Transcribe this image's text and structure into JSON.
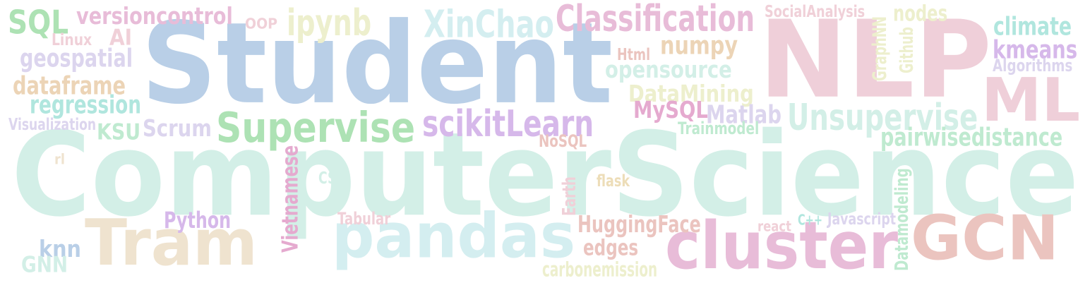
{
  "palette": {
    "blue": "#b9cfe7",
    "mint": "#d3efe7",
    "pink": "#efcfd9",
    "peach": "#efe3cf",
    "cyan": "#d4eef0",
    "orchid": "#e8bcd8",
    "salmon": "#ebc4bf",
    "green": "#ade2b4",
    "lilac": "#d6b8ea",
    "lightlilac": "#dcd5ee",
    "pinkish": "#e5aacf",
    "sand": "#ecd4b6",
    "lightyellow": "#edefcd",
    "teal": "#b0e6de",
    "lightpink": "#f0d0d8",
    "lightgreen": "#bfead0",
    "cyan2": "#b9e2e9",
    "tan": "#edddb8"
  },
  "words": [
    {
      "id": "computerscience",
      "text": "ComputerScience",
      "color": "mint"
    },
    {
      "id": "student",
      "text": "Student",
      "color": "blue"
    },
    {
      "id": "nlp",
      "text": "NLP",
      "color": "pink"
    },
    {
      "id": "tram",
      "text": "Tram",
      "color": "peach"
    },
    {
      "id": "pandas",
      "text": "pandas",
      "color": "cyan"
    },
    {
      "id": "cluster",
      "text": "cluster",
      "color": "orchid"
    },
    {
      "id": "gcn",
      "text": "GCN",
      "color": "salmon"
    },
    {
      "id": "ml",
      "text": "ML",
      "color": "pink"
    },
    {
      "id": "supervise",
      "text": "Supervise",
      "color": "green"
    },
    {
      "id": "unsupervise",
      "text": "Unsupervise",
      "color": "mint"
    },
    {
      "id": "scikitlearn",
      "text": "scikitLearn",
      "color": "lilac"
    },
    {
      "id": "classification",
      "text": "Classification",
      "color": "orchid"
    },
    {
      "id": "xinchao",
      "text": "XinChao",
      "color": "cyan"
    },
    {
      "id": "ipynb",
      "text": "ipynb",
      "color": "lightyellow"
    },
    {
      "id": "sql",
      "text": "SQL",
      "color": "green"
    },
    {
      "id": "versioncontrol",
      "text": "versioncontrol",
      "color": "orchid"
    },
    {
      "id": "geospatial",
      "text": "geospatial",
      "color": "lightlilac"
    },
    {
      "id": "dataframe",
      "text": "dataframe",
      "color": "sand"
    },
    {
      "id": "regression",
      "text": "regression",
      "color": "teal"
    },
    {
      "id": "pairwisedistance",
      "text": "pairwisedistance",
      "color": "lightgreen"
    },
    {
      "id": "climate",
      "text": "climate",
      "color": "teal"
    },
    {
      "id": "kmeans",
      "text": "kmeans",
      "color": "lilac"
    },
    {
      "id": "huggingface",
      "text": "HuggingFace",
      "color": "salmon"
    },
    {
      "id": "opensource",
      "text": "opensource",
      "color": "mint"
    },
    {
      "id": "datamining",
      "text": "DataMining",
      "color": "lightyellow"
    },
    {
      "id": "numpy",
      "text": "numpy",
      "color": "sand"
    },
    {
      "id": "matlab",
      "text": "Matlab",
      "color": "lightlilac"
    },
    {
      "id": "mysql",
      "text": "MySQL",
      "color": "pinkish"
    },
    {
      "id": "nodes",
      "text": "nodes",
      "color": "lightyellow"
    },
    {
      "id": "python",
      "text": "Python",
      "color": "lilac"
    },
    {
      "id": "scrum",
      "text": "Scrum",
      "color": "lightlilac"
    },
    {
      "id": "ksu",
      "text": "KSU",
      "color": "lightgreen"
    },
    {
      "id": "edges",
      "text": "edges",
      "color": "salmon"
    },
    {
      "id": "knn",
      "text": "knn",
      "color": "blue"
    },
    {
      "id": "gnn",
      "text": "GNN",
      "color": "mint"
    },
    {
      "id": "carbonemission",
      "text": "carbonemission",
      "color": "lightyellow"
    },
    {
      "id": "socialanalysis",
      "text": "SocialAnalysis",
      "color": "lightpink"
    },
    {
      "id": "trainmodel",
      "text": "Trainmodel",
      "color": "lightgreen"
    },
    {
      "id": "algorithms",
      "text": "Algorithms",
      "color": "lightlilac"
    },
    {
      "id": "visualization",
      "text": "Visualization",
      "color": "lightlilac"
    },
    {
      "id": "nosql",
      "text": "NoSQL",
      "color": "salmon"
    },
    {
      "id": "tabular",
      "text": "Tabular",
      "color": "lightpink"
    },
    {
      "id": "javascript",
      "text": "Javascript",
      "color": "lightlilac"
    },
    {
      "id": "ai",
      "text": "AI",
      "color": "lightpink"
    },
    {
      "id": "linux",
      "text": "Linux",
      "color": "lightpink"
    },
    {
      "id": "oop",
      "text": "OOP",
      "color": "lightpink"
    },
    {
      "id": "html",
      "text": "Html",
      "color": "salmon"
    },
    {
      "id": "css",
      "text": "CSS",
      "color": "mint"
    },
    {
      "id": "flask",
      "text": "flask",
      "color": "tan"
    },
    {
      "id": "react",
      "text": "react",
      "color": "lightpink"
    },
    {
      "id": "cpp",
      "text": "C++",
      "color": "teal"
    },
    {
      "id": "rl",
      "text": "rl",
      "color": "peach"
    },
    {
      "id": "vietnamese",
      "text": "Vietnamese",
      "color": "pinkish"
    },
    {
      "id": "earth",
      "text": "Earth",
      "color": "lightpink"
    },
    {
      "id": "graphnn",
      "text": "GraphNN",
      "color": "lightyellow"
    },
    {
      "id": "github",
      "text": "Github",
      "color": "lightyellow"
    },
    {
      "id": "datamodeling",
      "text": "Datamodeling",
      "color": "lightgreen"
    }
  ]
}
